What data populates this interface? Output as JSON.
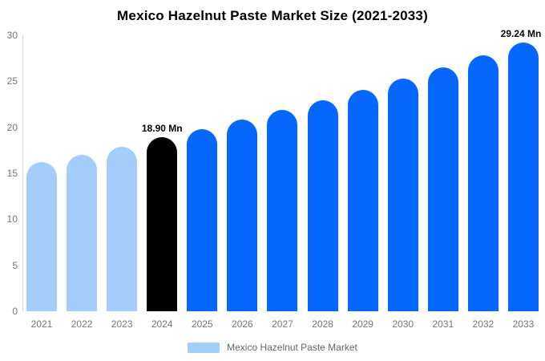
{
  "title": "Mexico Hazelnut Paste Market Size (2021-2033)",
  "legend": {
    "label": "Mexico Hazelnut Paste Market",
    "swatch_color": "#A4CDFA"
  },
  "colors": {
    "historical_bar": "#A4CDFA",
    "base_year_bar": "#000000",
    "forecast_bar": "#0667FE",
    "axis_line": "#D9D9D9",
    "tick_text": "#757575",
    "legend_text": "#666666",
    "annotation_text": "#000000",
    "title_text": "#000000",
    "background": "#FFFFFF"
  },
  "chart_data": {
    "type": "bar",
    "title": "Mexico Hazelnut Paste Market Size (2021-2033)",
    "series_name": "Mexico Hazelnut Paste Market",
    "unit": "Mn",
    "categories": [
      "2021",
      "2022",
      "2023",
      "2024",
      "2025",
      "2026",
      "2027",
      "2028",
      "2029",
      "2030",
      "2031",
      "2032",
      "2033"
    ],
    "values": [
      16.25,
      17.0,
      17.85,
      18.9,
      19.84,
      20.82,
      21.86,
      22.94,
      24.08,
      25.28,
      26.54,
      27.85,
      29.24
    ],
    "bar_roles": [
      "historical",
      "historical",
      "historical",
      "base_year",
      "forecast",
      "forecast",
      "forecast",
      "forecast",
      "forecast",
      "forecast",
      "forecast",
      "forecast",
      "forecast"
    ],
    "annotations": [
      {
        "index": 3,
        "text": "18.90 Mn"
      },
      {
        "index": 12,
        "text": "29.24 Mn"
      }
    ],
    "ylim": [
      0,
      30
    ],
    "yticks": [
      0,
      5,
      10,
      15,
      20,
      25,
      30
    ],
    "xlabel": "",
    "ylabel": "",
    "grid": false,
    "legend_position": "bottom"
  }
}
